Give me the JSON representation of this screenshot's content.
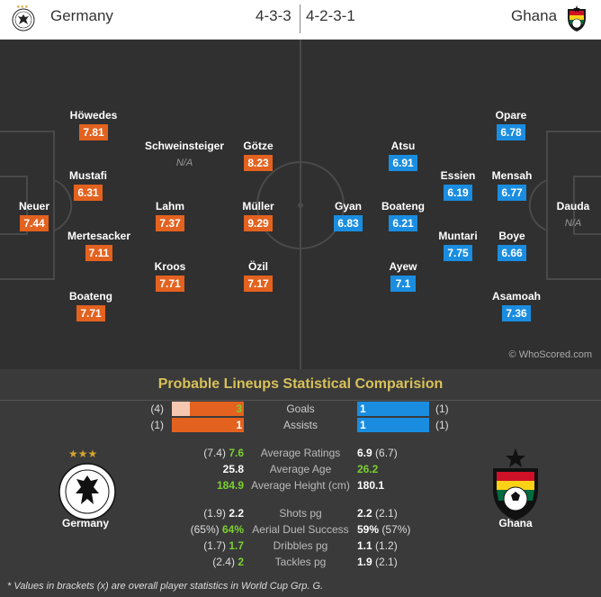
{
  "header": {
    "home_team": "Germany",
    "away_team": "Ghana",
    "home_formation": "4-3-3",
    "away_formation": "4-2-3-1"
  },
  "colors": {
    "home_badge": "#e3621f",
    "away_badge": "#1a8de0",
    "title": "#d8c15a",
    "highlight": "#7ad032",
    "pitch": "#303030"
  },
  "germany_players": [
    {
      "name": "Neuer",
      "rating": "7.44"
    },
    {
      "name": "Höwedes",
      "rating": "7.81"
    },
    {
      "name": "Mustafi",
      "rating": "6.31"
    },
    {
      "name": "Mertesacker",
      "rating": "7.11"
    },
    {
      "name": "Boateng",
      "rating": "7.71"
    },
    {
      "name": "Schweinsteiger",
      "rating": "N/A"
    },
    {
      "name": "Lahm",
      "rating": "7.37"
    },
    {
      "name": "Kroos",
      "rating": "7.71"
    },
    {
      "name": "Götze",
      "rating": "8.23"
    },
    {
      "name": "Müller",
      "rating": "9.29"
    },
    {
      "name": "Özil",
      "rating": "7.17"
    }
  ],
  "ghana_players": [
    {
      "name": "Gyan",
      "rating": "6.83"
    },
    {
      "name": "Atsu",
      "rating": "6.91"
    },
    {
      "name": "Boateng",
      "rating": "6.21"
    },
    {
      "name": "Ayew",
      "rating": "7.1"
    },
    {
      "name": "Essien",
      "rating": "6.19"
    },
    {
      "name": "Muntari",
      "rating": "7.75"
    },
    {
      "name": "Opare",
      "rating": "6.78"
    },
    {
      "name": "Mensah",
      "rating": "6.77"
    },
    {
      "name": "Boye",
      "rating": "6.66"
    },
    {
      "name": "Asamoah",
      "rating": "7.36"
    },
    {
      "name": "Dauda",
      "rating": "N/A"
    }
  ],
  "watermark": "© WhoScored.com",
  "stats": {
    "title": "Probable Lineups Statistical Comparision",
    "bars": [
      {
        "label": "Goals",
        "home": "3",
        "home_overall": "(4)",
        "away": "1",
        "away_overall": "(1)",
        "home_fill_fraction": 0.25
      },
      {
        "label": "Assists",
        "home": "1",
        "home_overall": "(1)",
        "away": "1",
        "away_overall": "(1)",
        "home_fill_fraction": 0
      }
    ],
    "rows": [
      {
        "label": "Average Ratings",
        "home_overall": "(7.4)",
        "home": "7.6",
        "away": "6.9",
        "away_overall": "(6.7)",
        "home_green": true,
        "away_green": false
      },
      {
        "label": "Average Age",
        "home_overall": "",
        "home": "25.8",
        "away": "26.2",
        "away_overall": "",
        "home_green": false,
        "away_green": true
      },
      {
        "label": "Average Height (cm)",
        "home_overall": "",
        "home": "184.9",
        "away": "180.1",
        "away_overall": "",
        "home_green": true,
        "away_green": false
      },
      {
        "label": "Shots pg",
        "home_overall": "(1.9)",
        "home": "2.2",
        "away": "2.2",
        "away_overall": "(2.1)",
        "home_green": false,
        "away_green": false
      },
      {
        "label": "Aerial Duel Success",
        "home_overall": "(65%)",
        "home": "64%",
        "away": "59%",
        "away_overall": "(57%)",
        "home_green": true,
        "away_green": false
      },
      {
        "label": "Dribbles pg",
        "home_overall": "(1.7)",
        "home": "1.7",
        "away": "1.1",
        "away_overall": "(1.2)",
        "home_green": true,
        "away_green": false
      },
      {
        "label": "Tackles pg",
        "home_overall": "(2.4)",
        "home": "2",
        "away": "1.9",
        "away_overall": "(2.1)",
        "home_green": true,
        "away_green": false
      }
    ],
    "home_caption": "Germany",
    "away_caption": "Ghana",
    "footnote": "* Values in brackets (x) are overall player statistics in World Cup Grp. G."
  }
}
